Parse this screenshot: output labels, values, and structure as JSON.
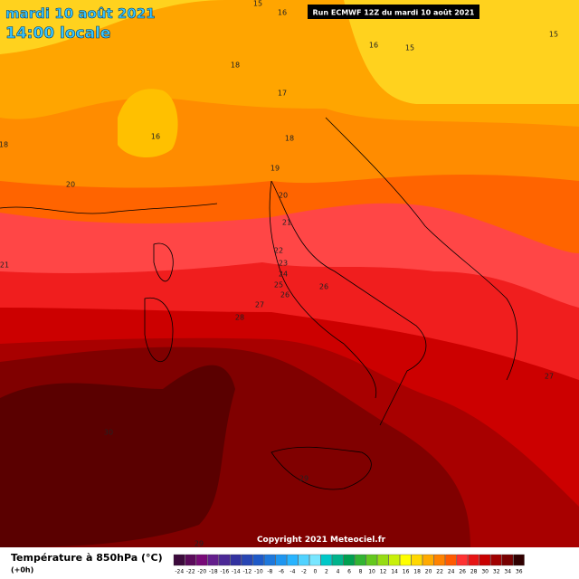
{
  "header": {
    "date": "mardi 10 août 2021",
    "time": "14:00 locale",
    "run": "Run ECMWF 12Z du mardi 10 août 2021"
  },
  "map": {
    "contour_labels": [
      15,
      16,
      16,
      15,
      15,
      18,
      17,
      16,
      18,
      18,
      19,
      20,
      20,
      21,
      21,
      22,
      23,
      24,
      25,
      26,
      26,
      27,
      28,
      27,
      30,
      29,
      29
    ]
  },
  "footer": {
    "title": "Température à 850hPa (°C)",
    "step": "(+0h)",
    "copyright": "Copyright 2021 Meteociel.fr"
  },
  "color_scale": {
    "values": [
      -24,
      -22,
      -20,
      -18,
      -16,
      -14,
      -12,
      -10,
      -8,
      -6,
      -4,
      -2,
      0,
      2,
      4,
      6,
      8,
      10,
      12,
      14,
      16,
      18,
      20,
      22,
      24,
      26,
      28,
      30,
      32,
      34,
      36
    ],
    "colors": [
      "#3c0a3c",
      "#5a0a5a",
      "#780a78",
      "#641e8c",
      "#4b2896",
      "#3232a0",
      "#2846b4",
      "#1e5ac8",
      "#1e78dc",
      "#1e96f0",
      "#28b4ff",
      "#50d2ff",
      "#78e6ff",
      "#00c8c8",
      "#00b48c",
      "#00a050",
      "#32b432",
      "#64c81e",
      "#96dc14",
      "#c8f00a",
      "#ffff00",
      "#ffd700",
      "#ffaa00",
      "#ff8200",
      "#ff5a00",
      "#ff3232",
      "#e61414",
      "#c80000",
      "#a00000",
      "#780000",
      "#300000"
    ]
  }
}
